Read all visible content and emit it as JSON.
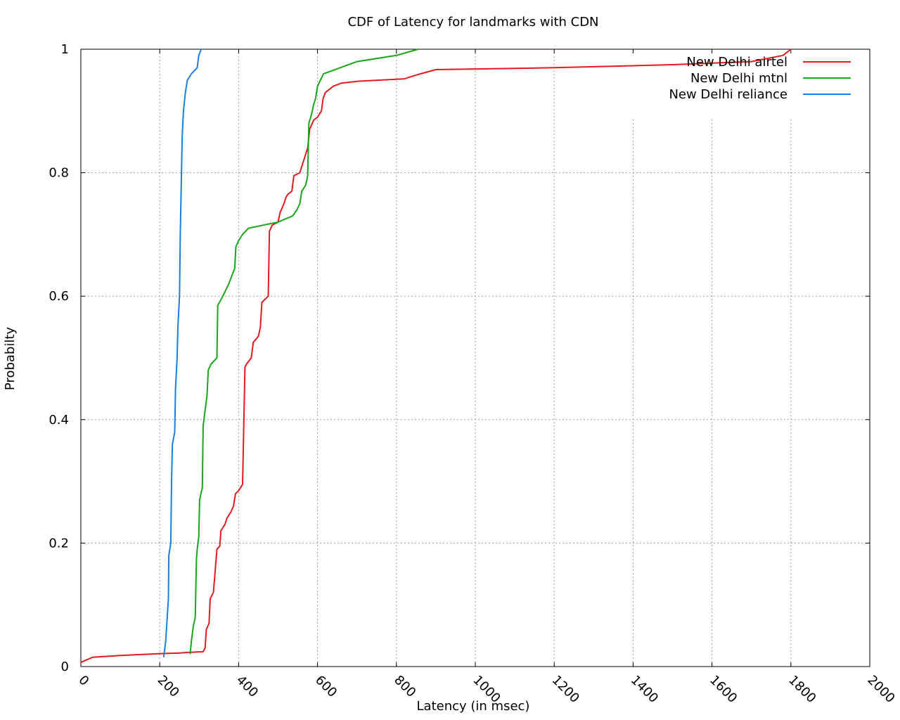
{
  "chart_data": {
    "type": "line",
    "title": "CDF of Latency for landmarks with CDN",
    "xlabel": "Latency (in msec)",
    "ylabel": "Probabilty",
    "xlim": [
      0,
      2000
    ],
    "ylim": [
      0,
      1
    ],
    "x_ticks": [
      "0",
      "200",
      "400",
      "600",
      "800",
      "1000",
      "1200",
      "1400",
      "1600",
      "1800",
      "2000"
    ],
    "y_ticks": [
      "0",
      "0.2",
      "0.4",
      "0.6",
      "0.8",
      "1"
    ],
    "grid": true,
    "legend_position": "top-right",
    "series": [
      {
        "name": "New Delhi airtel",
        "color": "#e41a1c",
        "points": [
          [
            0,
            0.007
          ],
          [
            30,
            0.015
          ],
          [
            100,
            0.018
          ],
          [
            200,
            0.021
          ],
          [
            250,
            0.022
          ],
          [
            275,
            0.023
          ],
          [
            310,
            0.024
          ],
          [
            315,
            0.03
          ],
          [
            318,
            0.06
          ],
          [
            325,
            0.07
          ],
          [
            328,
            0.11
          ],
          [
            336,
            0.12
          ],
          [
            340,
            0.15
          ],
          [
            345,
            0.19
          ],
          [
            352,
            0.195
          ],
          [
            355,
            0.22
          ],
          [
            365,
            0.23
          ],
          [
            370,
            0.24
          ],
          [
            380,
            0.25
          ],
          [
            387,
            0.26
          ],
          [
            392,
            0.28
          ],
          [
            400,
            0.285
          ],
          [
            410,
            0.295
          ],
          [
            416,
            0.485
          ],
          [
            420,
            0.49
          ],
          [
            432,
            0.5
          ],
          [
            437,
            0.525
          ],
          [
            450,
            0.535
          ],
          [
            455,
            0.55
          ],
          [
            459,
            0.59
          ],
          [
            475,
            0.6
          ],
          [
            478,
            0.705
          ],
          [
            485,
            0.715
          ],
          [
            500,
            0.72
          ],
          [
            505,
            0.735
          ],
          [
            515,
            0.75
          ],
          [
            520,
            0.76
          ],
          [
            525,
            0.765
          ],
          [
            535,
            0.77
          ],
          [
            540,
            0.795
          ],
          [
            555,
            0.8
          ],
          [
            560,
            0.81
          ],
          [
            575,
            0.84
          ],
          [
            580,
            0.87
          ],
          [
            590,
            0.885
          ],
          [
            600,
            0.89
          ],
          [
            610,
            0.9
          ],
          [
            614,
            0.92
          ],
          [
            620,
            0.93
          ],
          [
            640,
            0.94
          ],
          [
            660,
            0.945
          ],
          [
            700,
            0.948
          ],
          [
            820,
            0.952
          ],
          [
            860,
            0.96
          ],
          [
            900,
            0.967
          ],
          [
            1000,
            0.968
          ],
          [
            1200,
            0.97
          ],
          [
            1500,
            0.975
          ],
          [
            1700,
            0.98
          ],
          [
            1780,
            0.99
          ],
          [
            1800,
            1.0
          ]
        ]
      },
      {
        "name": "New Delhi mtnl",
        "color": "#1aa61a",
        "points": [
          [
            277,
            0.02
          ],
          [
            280,
            0.04
          ],
          [
            285,
            0.065
          ],
          [
            290,
            0.08
          ],
          [
            293,
            0.175
          ],
          [
            295,
            0.19
          ],
          [
            299,
            0.21
          ],
          [
            301,
            0.27
          ],
          [
            308,
            0.29
          ],
          [
            310,
            0.39
          ],
          [
            320,
            0.44
          ],
          [
            323,
            0.48
          ],
          [
            330,
            0.49
          ],
          [
            345,
            0.5
          ],
          [
            347,
            0.585
          ],
          [
            360,
            0.6
          ],
          [
            375,
            0.62
          ],
          [
            390,
            0.645
          ],
          [
            393,
            0.68
          ],
          [
            400,
            0.69
          ],
          [
            410,
            0.7
          ],
          [
            425,
            0.71
          ],
          [
            500,
            0.72
          ],
          [
            537,
            0.73
          ],
          [
            548,
            0.74
          ],
          [
            555,
            0.75
          ],
          [
            560,
            0.77
          ],
          [
            570,
            0.78
          ],
          [
            575,
            0.795
          ],
          [
            578,
            0.88
          ],
          [
            585,
            0.895
          ],
          [
            590,
            0.91
          ],
          [
            595,
            0.92
          ],
          [
            600,
            0.94
          ],
          [
            615,
            0.96
          ],
          [
            700,
            0.98
          ],
          [
            800,
            0.99
          ],
          [
            855,
            1.0
          ]
        ]
      },
      {
        "name": "New Delhi reliance",
        "color": "#1a7fe0",
        "points": [
          [
            210,
            0.015
          ],
          [
            215,
            0.04
          ],
          [
            218,
            0.07
          ],
          [
            222,
            0.11
          ],
          [
            223,
            0.18
          ],
          [
            228,
            0.2
          ],
          [
            230,
            0.3
          ],
          [
            232,
            0.36
          ],
          [
            238,
            0.38
          ],
          [
            240,
            0.45
          ],
          [
            244,
            0.5
          ],
          [
            246,
            0.55
          ],
          [
            250,
            0.6
          ],
          [
            252,
            0.7
          ],
          [
            255,
            0.8
          ],
          [
            257,
            0.86
          ],
          [
            260,
            0.9
          ],
          [
            265,
            0.93
          ],
          [
            270,
            0.95
          ],
          [
            280,
            0.96
          ],
          [
            295,
            0.97
          ],
          [
            299,
            0.99
          ],
          [
            305,
            1.0
          ]
        ]
      }
    ]
  }
}
